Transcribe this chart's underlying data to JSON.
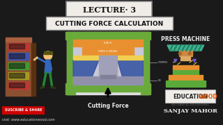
{
  "bg_color": "#1a1a1a",
  "title_text": "LECTURE· 3",
  "subtitle_text": "CUTTING FORCE CALCULATION",
  "cutting_force_text": "Cutting Force",
  "press_machine_text": "PRESS MACHINE",
  "education_text1": "EDUCATION",
  "education_text2": "WOOD",
  "mech_eng_text": "MECHANICAL ENGINEERING",
  "sanjay_text": "SANJAY MAHOR",
  "subscribe_text": "SUSCRIBE & SHARE",
  "visit_text": "visit: www.educationwood.com",
  "title_box_color": "#f0ede8",
  "subtitle_box_color": "#f0ede8",
  "subscribe_bg": "#cc0000",
  "tool_green": "#6aaa3a",
  "tool_orange": "#e89030",
  "tool_blue": "#3050a0",
  "tool_yellow": "#f0d050",
  "tool_white": "#e8e8e8",
  "press_green": "#5aaa3a",
  "press_orange": "#e89030",
  "press_teal": "#40b090",
  "press_teal2": "#208060",
  "logo_bg": "#f0ede8",
  "logo_orange": "#dd5500",
  "board_brown": "#8B5030",
  "board_dark": "#5a3010"
}
